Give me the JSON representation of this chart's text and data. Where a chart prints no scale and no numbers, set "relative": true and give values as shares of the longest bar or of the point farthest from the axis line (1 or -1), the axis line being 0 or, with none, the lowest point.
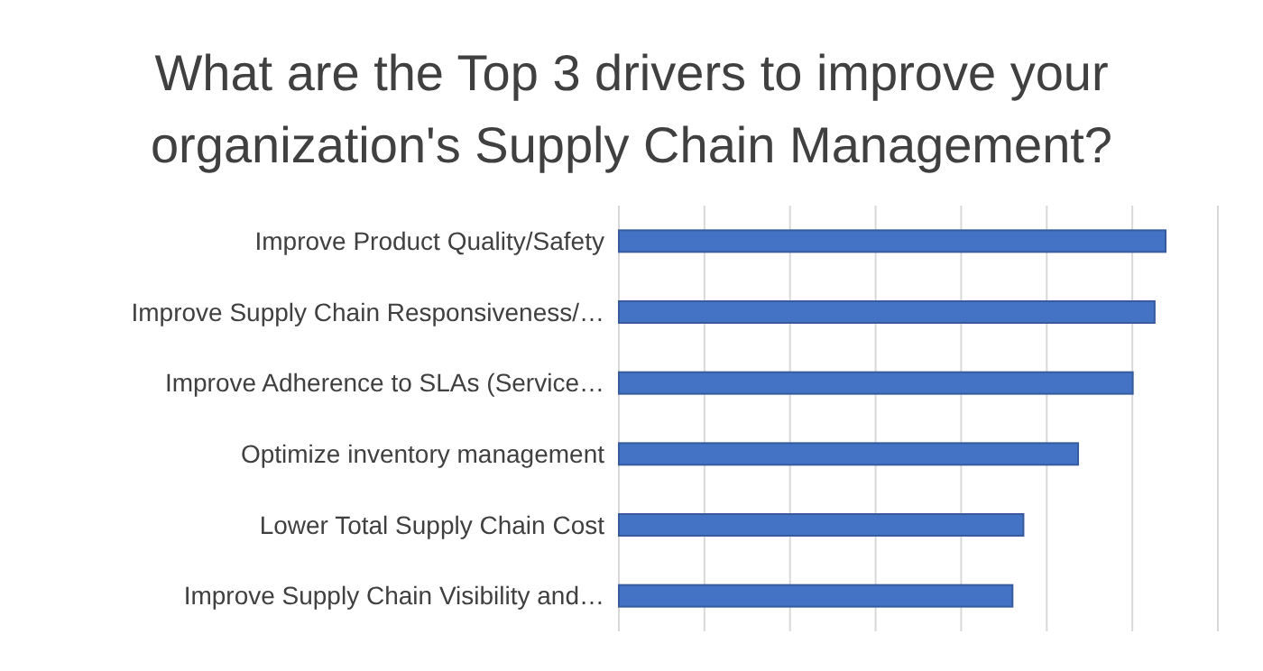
{
  "chart_data": {
    "type": "bar",
    "orientation": "horizontal",
    "relative": true,
    "title": "What are the Top 3 drivers to improve your organization's Supply Chain Management?",
    "categories": [
      "Improve Product Quality/Safety",
      "Improve Supply Chain Responsiveness/…",
      "Improve Adherence to SLAs (Service…",
      "Optimize inventory management",
      "Lower Total Supply Chain Cost",
      "Improve Supply Chain Visibility and…"
    ],
    "values": [
      1,
      0.98,
      0.94,
      0.84,
      0.74,
      0.72
    ],
    "color": "#4472c4",
    "grid": "x"
  }
}
